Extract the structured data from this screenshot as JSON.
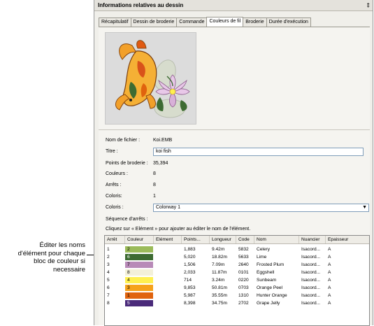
{
  "callout": {
    "lines": [
      "Éditer les noms",
      "d'élément pour chaque",
      "bloc de couleur si",
      "necessaire"
    ]
  },
  "panel": {
    "title": "Informations relatives au dessin",
    "pin_glyph": "‡"
  },
  "tabs": [
    {
      "label": "Récapitulatif",
      "active": false
    },
    {
      "label": "Dessin de broderie",
      "active": false
    },
    {
      "label": "Commande",
      "active": false
    },
    {
      "label": "Couleurs de fil",
      "active": true
    },
    {
      "label": "Broderie",
      "active": false
    },
    {
      "label": "Durée d'exécution",
      "active": false
    }
  ],
  "details": {
    "filename_label": "Nom de fichier :",
    "filename_value": "Koi.EMB",
    "title_label": "Titre :",
    "title_value": "koi fish",
    "points_label": "Points de broderie :",
    "points_value": "35,394",
    "colors_label": "Couleurs :",
    "colors_value": "8",
    "stops_label": "Arrêts :",
    "stops_value": "8",
    "colorways_label": "Coloris:",
    "colorways_value": "1",
    "colorway_select_label": "Coloris :",
    "colorway_select_value": "Colorway 1",
    "sequence_label": "Séquence d'arrêts :",
    "instruction": "Cliquez sur « Elément » pour ajouter au éditer le nom de l'élément."
  },
  "table": {
    "headers": [
      "Arrêt",
      "Couleur",
      "Elément",
      "Points...",
      "Longueur",
      "Code",
      "Nom",
      "Nuancier",
      "Epaisseur"
    ],
    "rows": [
      {
        "stop": "1",
        "color_num": "2",
        "swatch": "#9bbb5a",
        "text_color": "#000000",
        "element": "",
        "points": "1,883",
        "length": "9.42m",
        "code": "5832",
        "name": "Celery",
        "chart": "Isacord...",
        "thickness": "A"
      },
      {
        "stop": "2",
        "color_num": "6",
        "swatch": "#3d6b32",
        "text_color": "#ffffff",
        "element": "",
        "points": "5,020",
        "length": "18.82m",
        "code": "5633",
        "name": "Lime",
        "chart": "Isacord...",
        "thickness": "A"
      },
      {
        "stop": "3",
        "color_num": "7",
        "swatch": "#b88ab8",
        "text_color": "#000000",
        "element": "",
        "points": "1,506",
        "length": "7.09m",
        "code": "2640",
        "name": "Frosted Plum",
        "chart": "Isacord...",
        "thickness": "A"
      },
      {
        "stop": "4",
        "color_num": "8",
        "swatch": "#f3f0d8",
        "text_color": "#000000",
        "element": "",
        "points": "2,033",
        "length": "11.87m",
        "code": "0101",
        "name": "Eggshell",
        "chart": "Isacord...",
        "thickness": "A"
      },
      {
        "stop": "5",
        "color_num": "4",
        "swatch": "#fff050",
        "text_color": "#000000",
        "element": "",
        "points": "714",
        "length": "3.24m",
        "code": "0220",
        "name": "Sunbeam",
        "chart": "Isacord...",
        "thickness": "A"
      },
      {
        "stop": "6",
        "color_num": "3",
        "swatch": "#f6a21b",
        "text_color": "#000000",
        "element": "",
        "points": "9,853",
        "length": "50.81m",
        "code": "0703",
        "name": "Orange Peel",
        "chart": "Isacord...",
        "thickness": "A"
      },
      {
        "stop": "7",
        "color_num": "1",
        "swatch": "#e0630e",
        "text_color": "#000000",
        "element": "",
        "points": "5,987",
        "length": "35.55m",
        "code": "1310",
        "name": "Hunter Orange",
        "chart": "Isacord...",
        "thickness": "A"
      },
      {
        "stop": "8",
        "color_num": "5",
        "swatch": "#4a2a7a",
        "text_color": "#ffffff",
        "element": "",
        "points": "8,398",
        "length": "34.75m",
        "code": "2702",
        "name": "Grape Jelly",
        "chart": "Isacord...",
        "thickness": "A"
      }
    ]
  }
}
